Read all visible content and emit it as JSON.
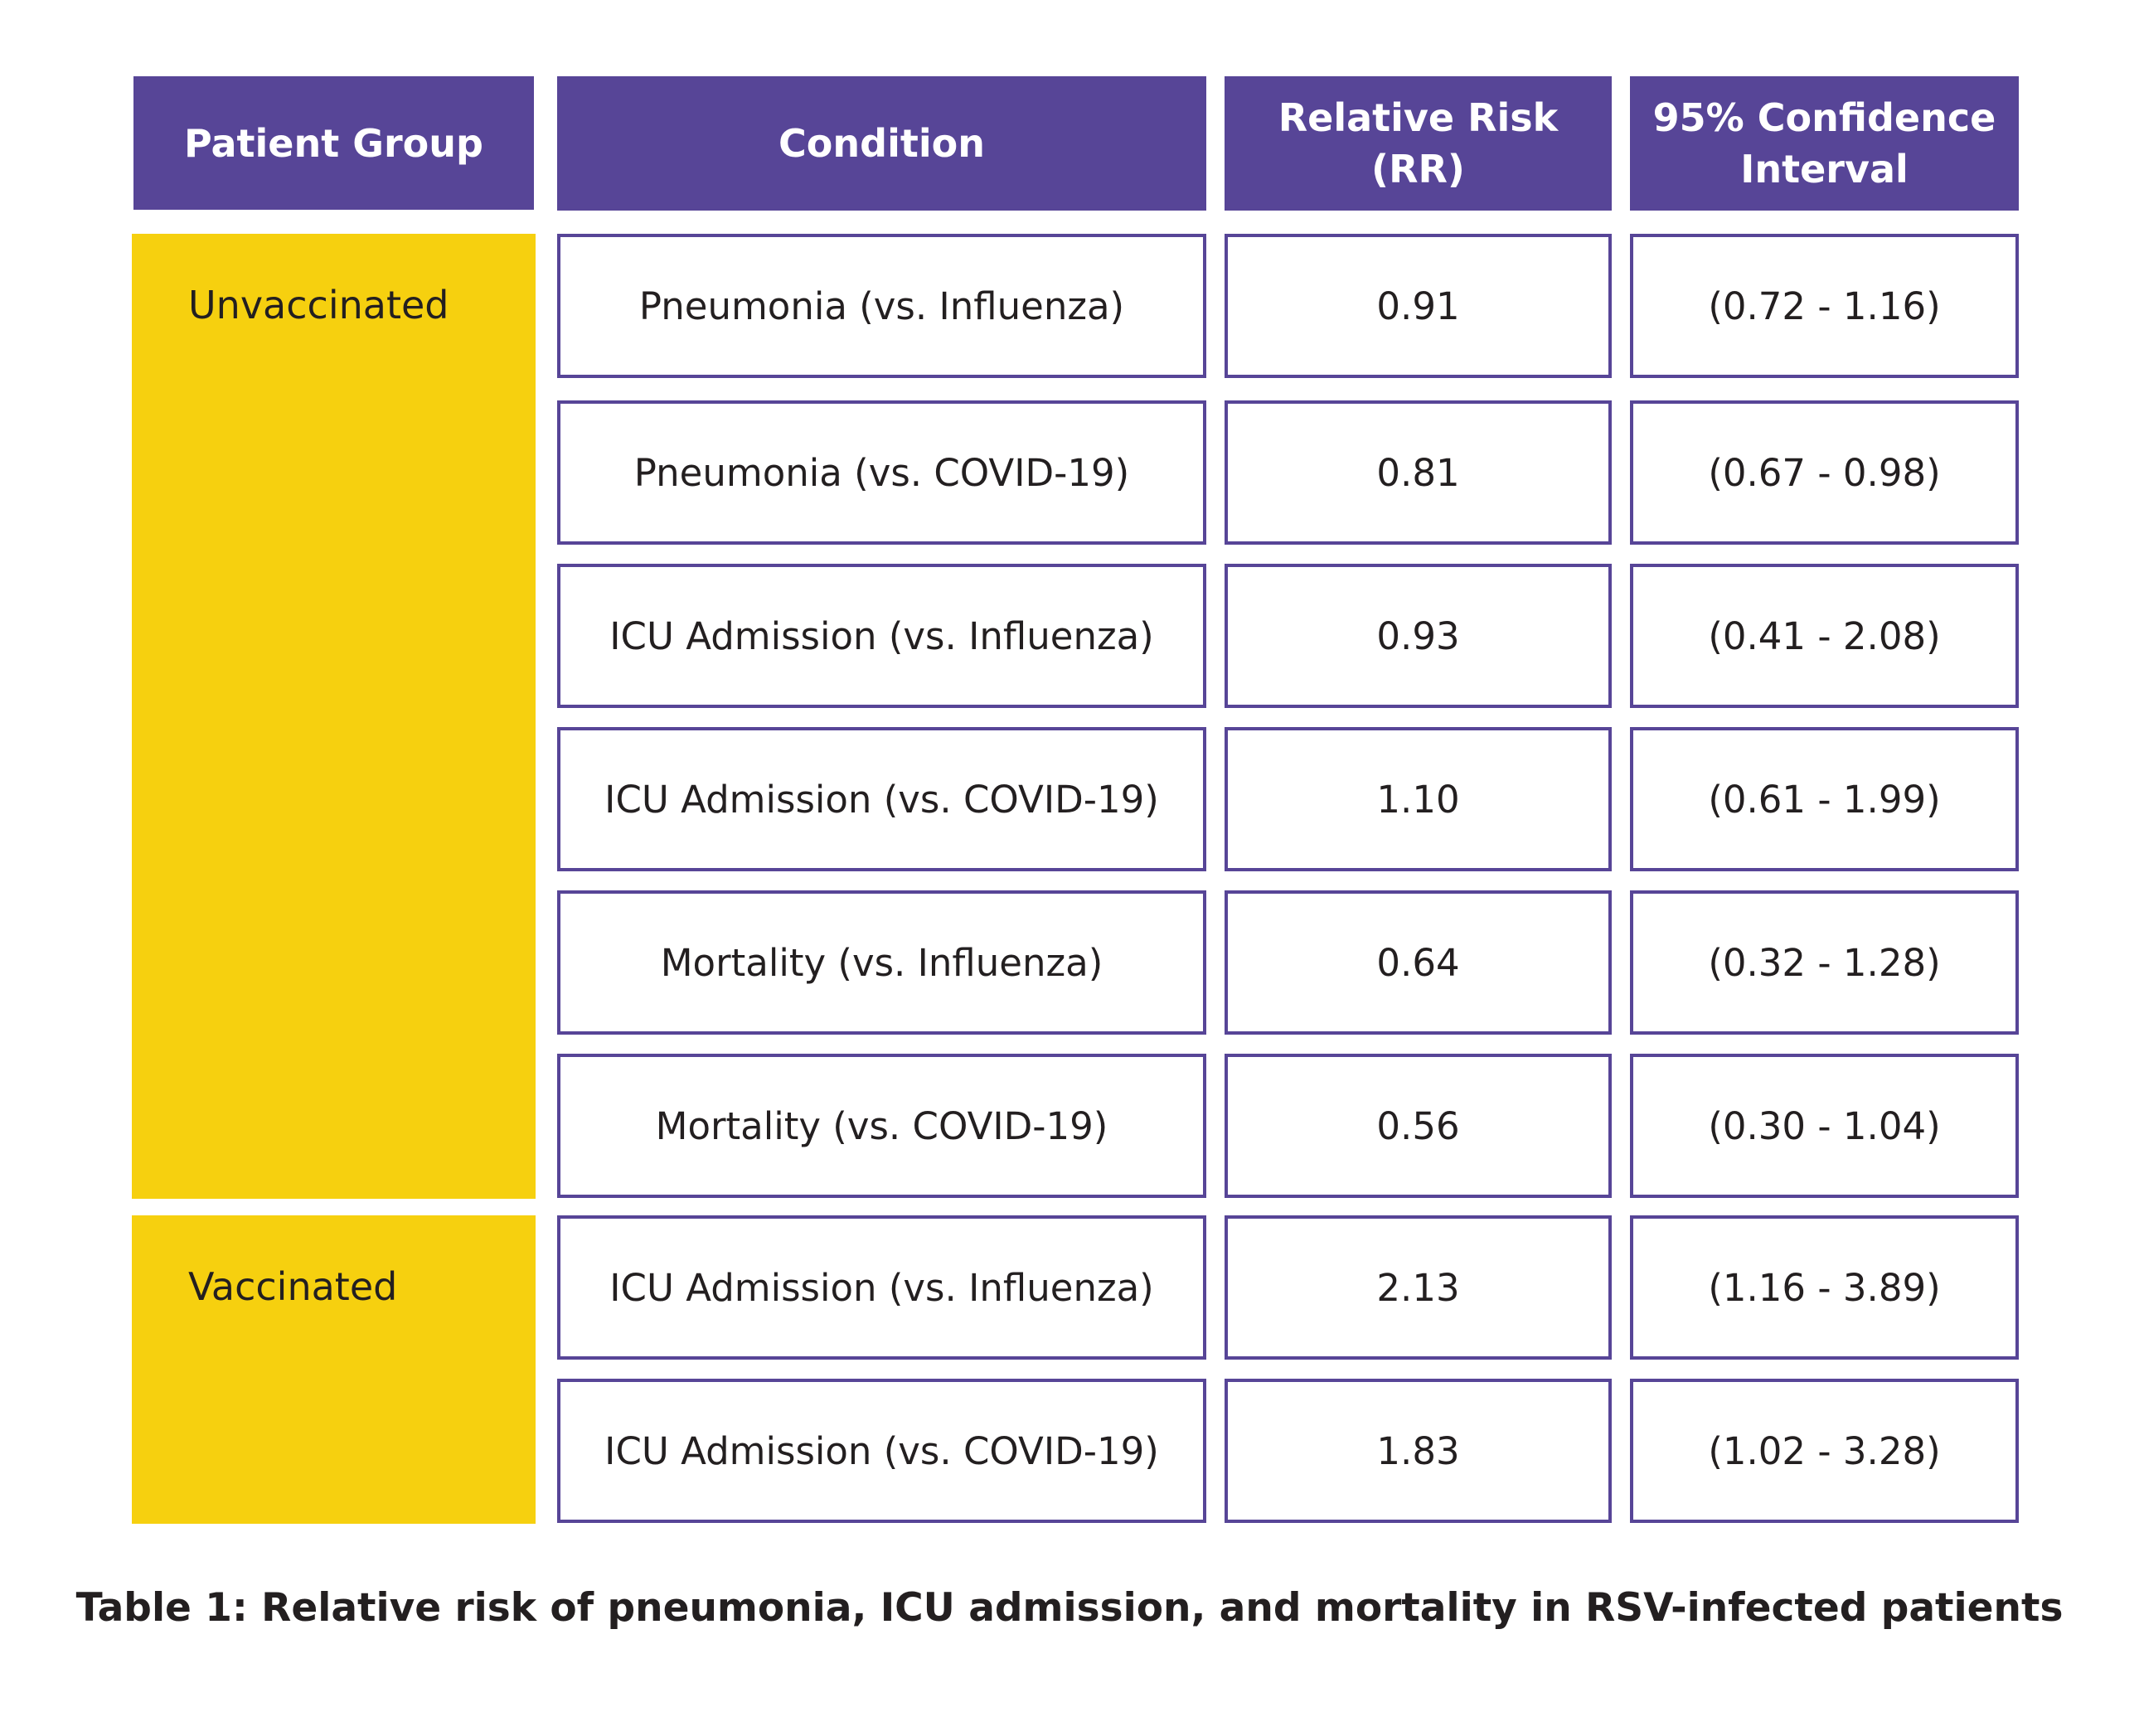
{
  "headers": [
    {
      "lines": [
        "Patient Group"
      ]
    },
    {
      "lines": [
        "Condition"
      ]
    },
    {
      "lines": [
        "Relative Risk",
        "(RR)"
      ]
    },
    {
      "lines": [
        "95% Confidence",
        "Interval"
      ]
    }
  ],
  "groups": [
    {
      "label": "Unvaccinated"
    },
    {
      "label": "Vaccinated"
    }
  ],
  "rows": [
    {
      "condition": "Pneumonia (vs. Influenza)",
      "rr": "0.91",
      "ci": "(0.72 - 1.16)"
    },
    {
      "condition": "Pneumonia (vs. COVID-19)",
      "rr": "0.81",
      "ci": "(0.67 - 0.98)"
    },
    {
      "condition": "ICU Admission (vs. Influenza)",
      "rr": "0.93",
      "ci": "(0.41 - 2.08)"
    },
    {
      "condition": "ICU Admission (vs. COVID-19)",
      "rr": "1.10",
      "ci": "(0.61 - 1.99)"
    },
    {
      "condition": "Mortality (vs. Influenza)",
      "rr": "0.64",
      "ci": "(0.32 - 1.28)"
    },
    {
      "condition": "Mortality (vs. COVID-19)",
      "rr": "0.56",
      "ci": "(0.30 - 1.04)"
    },
    {
      "condition": "ICU Admission (vs. Influenza)",
      "rr": "2.13",
      "ci": "(1.16 - 3.89)"
    },
    {
      "condition": "ICU Admission (vs. COVID-19)",
      "rr": "1.83",
      "ci": "(1.02 - 3.28)"
    }
  ],
  "caption": "Table 1: Relative risk of pneumonia, ICU admission, and mortality in RSV-infected patients",
  "colors": {
    "header": "#574597",
    "group": "#f6d00f",
    "border": "#574597",
    "text": "#231f20"
  }
}
